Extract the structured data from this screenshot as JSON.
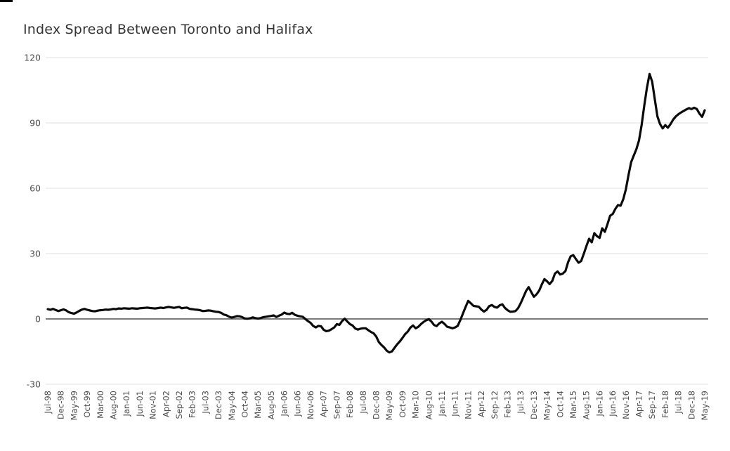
{
  "chart": {
    "title": "Index Spread Between Toronto and Halifax"
  },
  "style": {
    "background": "#ffffff",
    "grid_color": "#e2e2e2",
    "zero_line_color": "#7a7a7a",
    "tick_label_color": "#4c4c4c",
    "title_color": "#333333",
    "line_color": "#0a0a0a"
  },
  "chart_data": {
    "type": "line",
    "title": "Index Spread Between Toronto and Halifax",
    "xlabel": "",
    "ylabel": "",
    "x_unit": "month",
    "x_start_label": "Jul-98",
    "x_end_label": "May-19",
    "x_tick_interval_months": 5,
    "x_tick_labels": [
      "Jul-98",
      "Dec-98",
      "May-99",
      "Oct-99",
      "Mar-00",
      "Aug-00",
      "Jan-01",
      "Jun-01",
      "Nov-01",
      "Apr-02",
      "Sep-02",
      "Feb-03",
      "Jul-03",
      "Dec-03",
      "May-04",
      "Oct-04",
      "Mar-05",
      "Aug-05",
      "Jan-06",
      "Jun-06",
      "Nov-06",
      "Apr-07",
      "Sep-07",
      "Feb-08",
      "Jul-08",
      "Dec-08",
      "May-09",
      "Oct-09",
      "Mar-10",
      "Aug-10",
      "Jan-11",
      "Jun-11",
      "Nov-11",
      "Apr-12",
      "Sep-12",
      "Feb-13",
      "Jul-13",
      "Dec-13",
      "May-14",
      "Oct-14",
      "Mar-15",
      "Aug-15",
      "Jan-16",
      "Jun-16",
      "Nov-16",
      "Apr-17",
      "Sep-17",
      "Feb-18",
      "Jul-18",
      "Dec-18",
      "May-19"
    ],
    "y_ticks": [
      120,
      90,
      60,
      30,
      0,
      -30
    ],
    "y_tick_labels": [
      "120",
      "90",
      "60",
      "30",
      "0",
      "-30"
    ],
    "ylim": [
      -30,
      120
    ],
    "grid": "horizontal",
    "legend": "none",
    "values": [
      4.5,
      4.2,
      4.6,
      4.1,
      3.6,
      4.0,
      4.4,
      3.9,
      3.1,
      2.7,
      2.4,
      3.0,
      3.7,
      4.3,
      4.6,
      4.2,
      3.9,
      3.6,
      3.5,
      3.8,
      4.0,
      4.1,
      4.3,
      4.2,
      4.4,
      4.6,
      4.5,
      4.8,
      4.7,
      4.9,
      4.8,
      4.7,
      4.9,
      4.8,
      4.7,
      4.9,
      5.0,
      5.1,
      5.2,
      5.0,
      4.9,
      4.8,
      5.0,
      5.2,
      5.0,
      5.3,
      5.5,
      5.3,
      5.1,
      5.3,
      5.5,
      4.9,
      5.1,
      5.2,
      4.6,
      4.5,
      4.3,
      4.2,
      4.0,
      3.6,
      3.7,
      3.9,
      3.8,
      3.5,
      3.3,
      3.2,
      2.8,
      2.0,
      1.7,
      1.0,
      0.6,
      0.9,
      1.3,
      1.2,
      0.8,
      0.2,
      0.1,
      0.3,
      0.7,
      0.4,
      0.2,
      0.4,
      0.8,
      1.0,
      1.2,
      1.4,
      1.6,
      0.9,
      1.5,
      2.0,
      2.9,
      2.4,
      2.2,
      2.8,
      1.9,
      1.5,
      1.2,
      1.0,
      0.0,
      -1.0,
      -1.8,
      -3.2,
      -3.9,
      -3.2,
      -3.4,
      -5.0,
      -5.6,
      -5.4,
      -4.7,
      -3.9,
      -2.4,
      -2.7,
      -1.0,
      0.1,
      -1.2,
      -2.4,
      -3.0,
      -4.4,
      -4.9,
      -4.5,
      -4.3,
      -4.3,
      -5.2,
      -6.0,
      -6.6,
      -8.1,
      -10.6,
      -12.0,
      -13.1,
      -14.6,
      -15.4,
      -14.9,
      -13.2,
      -11.6,
      -10.3,
      -8.7,
      -7.0,
      -5.8,
      -4.0,
      -3.0,
      -4.3,
      -3.6,
      -2.4,
      -1.4,
      -0.6,
      -0.1,
      -1.2,
      -2.8,
      -3.3,
      -2.0,
      -1.3,
      -2.3,
      -3.6,
      -3.9,
      -4.3,
      -3.9,
      -3.2,
      -0.5,
      2.5,
      5.5,
      8.3,
      7.2,
      6.0,
      5.8,
      5.6,
      4.3,
      3.4,
      4.2,
      5.9,
      6.4,
      5.5,
      5.2,
      6.3,
      6.7,
      5.0,
      4.0,
      3.3,
      3.4,
      3.6,
      5.0,
      7.3,
      10.0,
      12.8,
      14.6,
      12.3,
      10.2,
      11.3,
      13.0,
      15.8,
      18.3,
      17.3,
      16.0,
      17.5,
      20.8,
      21.8,
      20.4,
      20.8,
      22.0,
      26.0,
      28.8,
      29.3,
      27.5,
      25.8,
      26.6,
      30.0,
      33.5,
      36.8,
      35.2,
      39.4,
      38.0,
      37.2,
      41.6,
      40.0,
      43.5,
      47.4,
      48.2,
      50.5,
      52.3,
      52.0,
      55.0,
      59.5,
      66.0,
      72.0,
      75.0,
      78.0,
      82.0,
      89.0,
      98.0,
      106.0,
      112.5,
      109.0,
      101.0,
      93.0,
      89.5,
      87.5,
      89.0,
      87.8,
      89.5,
      91.5,
      93.0,
      94.0,
      94.8,
      95.5,
      96.2,
      96.8,
      96.4,
      97.0,
      96.4,
      94.3,
      92.8,
      95.8
    ]
  }
}
